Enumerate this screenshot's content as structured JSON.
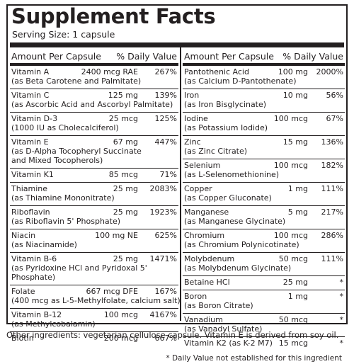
{
  "title": "Supplement Facts",
  "serving": "Serving Size: 1 capsule",
  "header": {
    "amount_per": "Amount Per Capsule",
    "daily_value": "% Daily Value"
  },
  "left": [
    {
      "name": "Vitamin A",
      "amount": "2400 mcg RAE",
      "dv": "267%",
      "sub": "(as Beta Carotene and Palmitate)"
    },
    {
      "name": "Vitamin C",
      "amount": "125 mg",
      "dv": "139%",
      "sub": "(as Ascorbic Acid and Ascorbyl Palmitate)"
    },
    {
      "name": "Vitamin D-3",
      "amount": "25 mcg",
      "dv": "125%",
      "sub": "(1000 IU as Cholecalciferol)"
    },
    {
      "name": "Vitamin E",
      "amount": "67 mg",
      "dv": "447%",
      "sub": "(as D-Alpha Tocopheryl Succinate",
      "sub2": "and Mixed Tocopherols)"
    },
    {
      "name": "Vitamin K1",
      "amount": "85 mcg",
      "dv": "71%"
    },
    {
      "name": "Thiamine",
      "amount": "25 mg",
      "dv": "2083%",
      "sub": "(as Thiamine Mononitrate)"
    },
    {
      "name": "Riboflavin",
      "amount": "25 mg",
      "dv": "1923%",
      "sub": "(as Riboflavin 5' Phosphate)"
    },
    {
      "name": "Niacin",
      "amount": "100 mg NE",
      "dv": "625%",
      "sub": "(as Niacinamide)"
    },
    {
      "name": "Vitamin B-6",
      "amount": "25 mg",
      "dv": "1471%",
      "sub": "(as Pyridoxine HCl and Pyridoxal 5'",
      "sub2": "Phosphate)"
    },
    {
      "name": "Folate",
      "amount": "667 mcg DFE",
      "dv": "167%",
      "sub": "(400 mcg as L-5-Methylfolate, calcium salt)"
    },
    {
      "name": "Vitamin B-12",
      "amount": "100 mcg",
      "dv": "4167%",
      "sub": "(as Methylcobalamin)"
    },
    {
      "name": "Biotin",
      "amount": "200 mcg",
      "dv": "667%"
    }
  ],
  "right": [
    {
      "name": "Pantothenic Acid",
      "amount": "100 mg",
      "dv": "2000%",
      "sub": "(as Calcium D-Pantothenate)"
    },
    {
      "name": "Iron",
      "amount": "10 mg",
      "dv": "56%",
      "sub": "(as Iron Bisglycinate)"
    },
    {
      "name": "Iodine",
      "amount": "100 mcg",
      "dv": "67%",
      "sub": "(as Potassium Iodide)"
    },
    {
      "name": "Zinc",
      "amount": "15 mg",
      "dv": "136%",
      "sub": "(as Zinc Citrate)"
    },
    {
      "name": "Selenium",
      "amount": "100 mcg",
      "dv": "182%",
      "sub": "(as L-Selenomethionine)"
    },
    {
      "name": "Copper",
      "amount": "1 mg",
      "dv": "111%",
      "sub": "(as Copper Gluconate)"
    },
    {
      "name": "Manganese",
      "amount": "5 mg",
      "dv": "217%",
      "sub": "(as Manganese Glycinate)"
    },
    {
      "name": "Chromium",
      "amount": "100 mcg",
      "dv": "286%",
      "sub": "(as Chromium Polynicotinate)"
    },
    {
      "name": "Molybdenum",
      "amount": "50 mcg",
      "dv": "111%",
      "sub": "(as Molybdenum Glycinate)"
    },
    {
      "name": "Betaine HCl",
      "amount": "25 mg",
      "dv": "*"
    },
    {
      "name": "Boron",
      "amount": "1 mg",
      "dv": "*",
      "sub": "(as Boron Citrate)"
    },
    {
      "name": "Vanadium",
      "amount": "50 mcg",
      "dv": "*",
      "sub": "(as Vanadyl Sulfate)"
    },
    {
      "name": "Vitamin K2 (as K-2 M7)",
      "amount": "15 mcg",
      "dv": "*"
    }
  ],
  "footnote": "* Daily Value not established for this ingredient",
  "other_ingredients": "Other ingredients: vegetarian cellulose capsule. Vitamin E is derived from soy oil."
}
